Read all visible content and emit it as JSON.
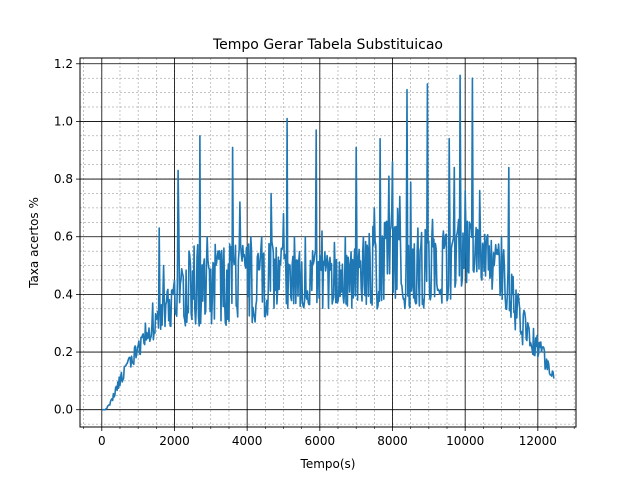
{
  "chart_data": {
    "type": "line",
    "title": "Tempo Gerar Tabela Substituicao",
    "xlabel": "Tempo(s)",
    "ylabel": "Taxa acertos %",
    "xlim": [
      -600,
      13050
    ],
    "ylim": [
      -0.06,
      1.22
    ],
    "xticks": [
      0,
      2000,
      4000,
      6000,
      8000,
      10000,
      12000
    ],
    "yticks": [
      0.0,
      0.2,
      0.4,
      0.6,
      0.8,
      1.0,
      1.2
    ],
    "xtick_labels": [
      "0",
      "2000",
      "4000",
      "6000",
      "8000",
      "10000",
      "12000"
    ],
    "ytick_labels": [
      "0.0",
      "0.2",
      "0.4",
      "0.6",
      "0.8",
      "1.0",
      "1.2"
    ],
    "x_minor_step": 500,
    "y_minor_step": 0.05,
    "grid": true,
    "line_color": "#1f77b4",
    "series": [
      {
        "x": [
          0,
          100,
          200,
          300,
          400,
          500,
          600,
          700,
          800,
          900,
          1000,
          1100,
          1200,
          1300,
          1400,
          1500,
          1600,
          1700,
          1800,
          1900,
          2000,
          2100,
          2200,
          2300,
          2400,
          2600,
          2800,
          3000,
          3200,
          3400,
          3600,
          3800,
          4000,
          4200,
          4400,
          4600,
          4800,
          5000,
          5200,
          5400,
          5600,
          5800,
          6000,
          6200,
          6400,
          6600,
          6800,
          7000,
          7200,
          7400,
          7600,
          7800,
          8000,
          8200,
          8400,
          8600,
          8800,
          9000,
          9200,
          9400,
          9600,
          9800,
          10000,
          10200,
          10400,
          10600,
          10800,
          11000,
          11200,
          11400,
          11600,
          11800,
          12000,
          12200,
          12300,
          12400,
          12450
        ],
        "low": [
          0.0,
          0.0,
          0.01,
          0.03,
          0.06,
          0.08,
          0.1,
          0.13,
          0.14,
          0.16,
          0.18,
          0.2,
          0.22,
          0.23,
          0.24,
          0.25,
          0.26,
          0.27,
          0.28,
          0.28,
          0.3,
          0.32,
          0.35,
          0.29,
          0.29,
          0.29,
          0.29,
          0.29,
          0.29,
          0.29,
          0.3,
          0.3,
          0.3,
          0.3,
          0.3,
          0.33,
          0.34,
          0.35,
          0.35,
          0.35,
          0.35,
          0.35,
          0.35,
          0.35,
          0.35,
          0.35,
          0.35,
          0.35,
          0.35,
          0.35,
          0.35,
          0.35,
          0.35,
          0.35,
          0.35,
          0.35,
          0.35,
          0.35,
          0.36,
          0.37,
          0.38,
          0.4,
          0.42,
          0.44,
          0.45,
          0.44,
          0.4,
          0.36,
          0.32,
          0.27,
          0.22,
          0.2,
          0.17,
          0.14,
          0.12,
          0.11,
          0.1
        ],
        "high": [
          0.0,
          0.0,
          0.02,
          0.05,
          0.09,
          0.12,
          0.15,
          0.17,
          0.2,
          0.22,
          0.24,
          0.26,
          0.28,
          0.3,
          0.31,
          0.34,
          0.38,
          0.4,
          0.42,
          0.44,
          0.45,
          0.47,
          0.49,
          0.58,
          0.58,
          0.58,
          0.58,
          0.59,
          0.58,
          0.57,
          0.58,
          0.58,
          0.58,
          0.58,
          0.58,
          0.58,
          0.59,
          0.58,
          0.56,
          0.56,
          0.56,
          0.56,
          0.55,
          0.55,
          0.55,
          0.55,
          0.55,
          0.56,
          0.58,
          0.62,
          0.68,
          0.7,
          0.72,
          0.69,
          0.64,
          0.6,
          0.62,
          0.66,
          0.64,
          0.64,
          0.65,
          0.66,
          0.67,
          0.64,
          0.63,
          0.61,
          0.6,
          0.58,
          0.52,
          0.44,
          0.38,
          0.3,
          0.26,
          0.21,
          0.17,
          0.14,
          0.12
        ],
        "spikes": [
          [
            780,
            0.18
          ],
          [
            1200,
            0.3
          ],
          [
            1400,
            0.37
          ],
          [
            1580,
            0.63
          ],
          [
            1700,
            0.5
          ],
          [
            1950,
            0.4
          ],
          [
            2100,
            0.83
          ],
          [
            2120,
            0.64
          ],
          [
            2400,
            0.55
          ],
          [
            2700,
            0.95
          ],
          [
            2900,
            0.6
          ],
          [
            3200,
            0.55
          ],
          [
            3600,
            0.91
          ],
          [
            3800,
            0.72
          ],
          [
            4100,
            0.6
          ],
          [
            4400,
            0.6
          ],
          [
            4650,
            0.75
          ],
          [
            5000,
            0.68
          ],
          [
            5100,
            1.01
          ],
          [
            5300,
            0.6
          ],
          [
            5600,
            0.6
          ],
          [
            5900,
            0.97
          ],
          [
            6050,
            0.62
          ],
          [
            6400,
            0.58
          ],
          [
            6700,
            0.6
          ],
          [
            7000,
            0.91
          ],
          [
            7200,
            0.6
          ],
          [
            7500,
            0.7
          ],
          [
            7650,
            0.94
          ],
          [
            7900,
            0.81
          ],
          [
            8000,
            0.86
          ],
          [
            8200,
            0.74
          ],
          [
            8400,
            1.11
          ],
          [
            8500,
            0.79
          ],
          [
            8700,
            0.63
          ],
          [
            8950,
            1.13
          ],
          [
            9100,
            0.66
          ],
          [
            9400,
            0.62
          ],
          [
            9550,
            0.94
          ],
          [
            9700,
            0.84
          ],
          [
            9850,
            1.16
          ],
          [
            10000,
            0.76
          ],
          [
            10200,
            1.15
          ],
          [
            10400,
            0.76
          ],
          [
            10600,
            0.6
          ],
          [
            10800,
            0.5
          ],
          [
            11000,
            0.6
          ],
          [
            11200,
            0.84
          ],
          [
            11300,
            0.4
          ],
          [
            11500,
            0.35
          ],
          [
            11700,
            0.24
          ],
          [
            11950,
            0.22
          ],
          [
            12100,
            0.2
          ]
        ]
      }
    ]
  }
}
